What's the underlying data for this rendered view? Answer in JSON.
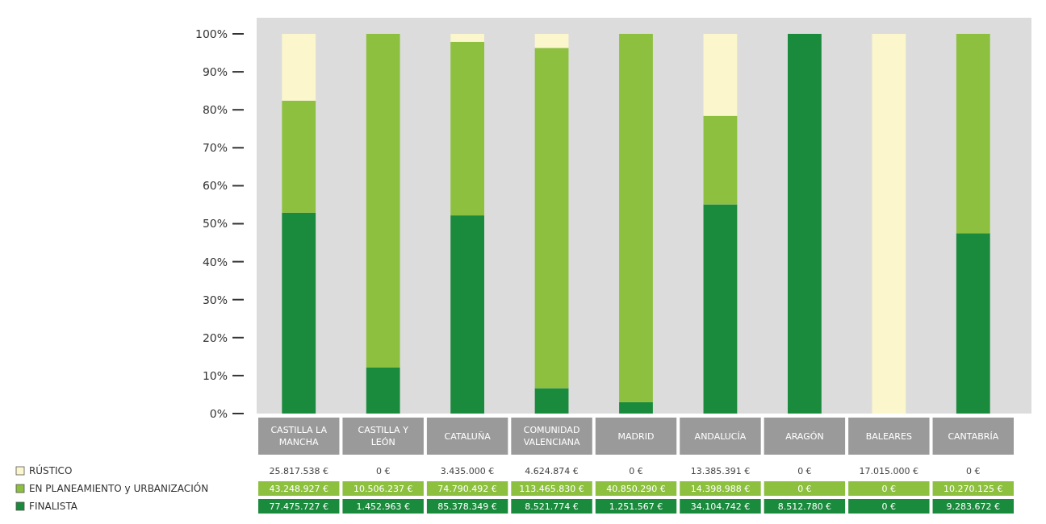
{
  "chart_data": [
    {
      "type": "bar",
      "stacked": true,
      "categories": [
        "CASTILLA LA MANCHA",
        "CASTILLA Y LEÓN",
        "CATALUÑA",
        "COMUNIDAD VALENCIANA",
        "MADRID",
        "ANDALUCÍA",
        "ARAGÓN",
        "BALEARES",
        "CANTABRÍA"
      ],
      "series": [
        {
          "color": "#1a8a3c",
          "values": [
            52.9,
            12.1,
            52.2,
            6.7,
            3.0,
            55.1,
            100,
            0,
            47.5
          ]
        },
        {
          "color": "#8dc03f",
          "values": [
            29.5,
            87.9,
            45.7,
            89.6,
            97.0,
            23.3,
            0,
            0,
            52.5
          ]
        },
        {
          "color": "#fbf6cc",
          "values": [
            17.6,
            0,
            2.1,
            3.7,
            0,
            21.6,
            0,
            100,
            0
          ]
        }
      ],
      "ylim": [
        0,
        100
      ],
      "yticks": [
        {
          "value": 0,
          "label": "0%"
        },
        {
          "value": 10,
          "label": "10%"
        },
        {
          "value": 20,
          "label": "20%"
        },
        {
          "value": 30,
          "label": "30%"
        },
        {
          "value": 40,
          "label": "40%"
        },
        {
          "value": 50,
          "label": "50%"
        },
        {
          "value": 60,
          "label": "60%"
        },
        {
          "value": 70,
          "label": "70%"
        },
        {
          "value": 80,
          "label": "80%"
        },
        {
          "value": 90,
          "label": "90%"
        },
        {
          "value": 100,
          "label": "100%"
        }
      ],
      "grid": false
    },
    {
      "type": "other",
      "categories": [
        null,
        null,
        null,
        null,
        null,
        null,
        null,
        null,
        null
      ],
      "series": [
        {
          "name": "RÚSTICO",
          "color": "#fbf6cc",
          "values": [
            null,
            null,
            null,
            null,
            null,
            null,
            null,
            null,
            null
          ],
          "value_labels": [
            "25.817.538 €",
            "0 €",
            "3.435.000 €",
            "4.624.874 €",
            "0 €",
            "13.385.391 €",
            "0 €",
            "17.015.000 €",
            "0 €"
          ]
        },
        {
          "name": "EN PLANEAMIENTO y URBANIZACIÓN",
          "color": "#8dc03f",
          "values": [
            null,
            null,
            null,
            null,
            null,
            null,
            null,
            null,
            null
          ],
          "value_labels": [
            "43.248.927 €",
            "10.506.237 €",
            "74.790.492 €",
            "113.465.830 €",
            "40.850.290 €",
            "14.398.988 €",
            "0 €",
            "0 €",
            "10.270.125 €"
          ]
        },
        {
          "name": "FINALISTA",
          "color": "#1a8a3c",
          "values": [
            null,
            null,
            null,
            null,
            null,
            null,
            null,
            null,
            null
          ],
          "value_labels": [
            "77.475.727 €",
            "1.452.963 €",
            "85.378.349 €",
            "8.521.774 €",
            "1.251.567 €",
            "34.104.742 €",
            "8.512.780 €",
            "0 €",
            "9.283.672 €"
          ]
        }
      ],
      "legend": "bottom left"
    }
  ]
}
